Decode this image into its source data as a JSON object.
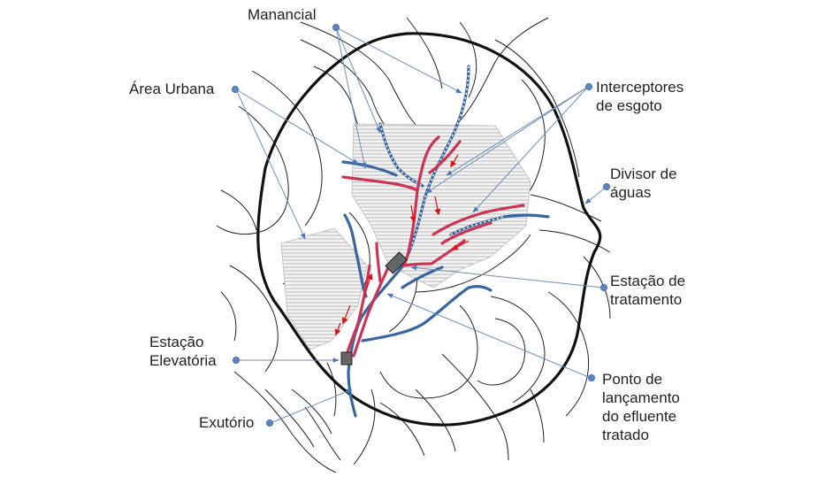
{
  "labels": {
    "manancial": "Manancial",
    "area_urbana": "Área Urbana",
    "interceptores_1": "Interceptores",
    "interceptores_2": "de esgoto",
    "divisor_1": "Divisor de",
    "divisor_2": "águas",
    "estacao_tratamento_1": "Estação de",
    "estacao_tratamento_2": "tratamento",
    "estacao_elevatoria_1": "Estação",
    "estacao_elevatoria_2": "Elevatória",
    "exutorio": "Exutório",
    "ponto_1": "Ponto de",
    "ponto_2": "lançamento",
    "ponto_3": "do efluente",
    "ponto_4": "tratado"
  },
  "colors": {
    "watershed_boundary": "#111111",
    "contour": "#222222",
    "river": "#3a66a0",
    "sewer": "#cc3355",
    "flow_arrow": "#dd1111",
    "leader": "#6f8fb5",
    "leader_dot": "#5b86c6",
    "urban_hatch": "#aaaaaa",
    "facility": "#666666"
  }
}
